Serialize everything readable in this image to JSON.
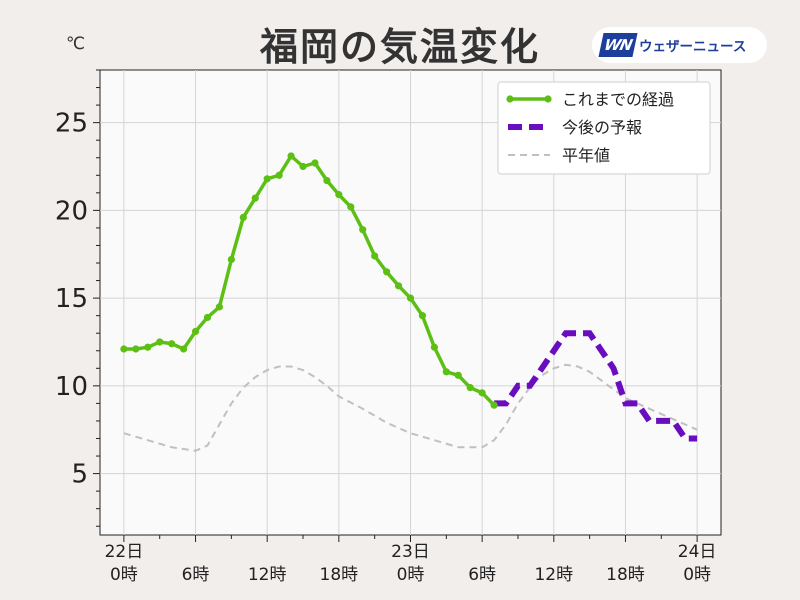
{
  "header": {
    "title": "福岡の気温変化",
    "unit": "℃",
    "brand_logo": "WN",
    "brand_name": "ウェザーニュース"
  },
  "colors": {
    "observed": "#5cbf14",
    "forecast": "#6a0dbf",
    "normal": "#c0c0c0",
    "plot_bg": "#fbfafa",
    "brand": "#1e3e9c"
  },
  "chart_data": {
    "type": "line",
    "title": "福岡の気温変化",
    "ylabel": "℃",
    "xlabel": "",
    "ylim": [
      1.5,
      28
    ],
    "xlim": [
      -2,
      50
    ],
    "grid": true,
    "legend_position": "top-right",
    "y_ticks": [
      5,
      10,
      15,
      20,
      25
    ],
    "x_ticks": [
      {
        "x": 0,
        "line1": "22日",
        "line2": "0時"
      },
      {
        "x": 6,
        "line1": "",
        "line2": "6時"
      },
      {
        "x": 12,
        "line1": "",
        "line2": "12時"
      },
      {
        "x": 18,
        "line1": "",
        "line2": "18時"
      },
      {
        "x": 24,
        "line1": "23日",
        "line2": "0時"
      },
      {
        "x": 30,
        "line1": "",
        "line2": "6時"
      },
      {
        "x": 36,
        "line1": "",
        "line2": "12時"
      },
      {
        "x": 42,
        "line1": "",
        "line2": "18時"
      },
      {
        "x": 48,
        "line1": "24日",
        "line2": "0時"
      }
    ],
    "series": [
      {
        "name": "これまでの経過",
        "style": "solid-markers",
        "x": [
          0,
          1,
          2,
          3,
          4,
          5,
          6,
          7,
          8,
          9,
          10,
          11,
          12,
          13,
          14,
          15,
          16,
          17,
          18,
          19,
          20,
          21,
          22,
          23,
          24,
          25,
          26,
          27,
          28,
          29,
          30,
          31
        ],
        "y": [
          12.1,
          12.1,
          12.2,
          12.5,
          12.4,
          12.1,
          13.1,
          13.9,
          14.5,
          17.2,
          19.6,
          20.7,
          21.8,
          22.0,
          23.1,
          22.5,
          22.7,
          21.7,
          20.9,
          20.2,
          18.9,
          17.4,
          16.5,
          15.7,
          15.0,
          14.0,
          12.2,
          10.8,
          10.6,
          9.9,
          9.6,
          8.9
        ]
      },
      {
        "name": "今後の予報",
        "style": "dashed-step",
        "x": [
          31,
          32,
          33,
          34,
          35,
          36,
          37,
          38,
          39,
          40,
          41,
          42,
          43,
          44,
          45,
          46,
          47,
          48
        ],
        "y": [
          9,
          9,
          10,
          10,
          11,
          12,
          13,
          13,
          13,
          12,
          11,
          9,
          9,
          8,
          8,
          8,
          7,
          7
        ]
      },
      {
        "name": "平年値",
        "style": "dashed-thin",
        "x": [
          0,
          2,
          4,
          6,
          7,
          8,
          9,
          10,
          11,
          12,
          13,
          14,
          15,
          16,
          17,
          18,
          20,
          22,
          24,
          26,
          28,
          30,
          31,
          32,
          33,
          34,
          35,
          36,
          37,
          38,
          39,
          40,
          41,
          42,
          44,
          46,
          48
        ],
        "y": [
          7.3,
          6.9,
          6.5,
          6.3,
          6.6,
          7.8,
          9.0,
          9.9,
          10.5,
          10.9,
          11.1,
          11.1,
          10.9,
          10.5,
          10.0,
          9.4,
          8.7,
          7.9,
          7.3,
          6.9,
          6.5,
          6.5,
          6.9,
          7.8,
          9.0,
          9.9,
          10.6,
          11.0,
          11.2,
          11.1,
          10.8,
          10.3,
          9.8,
          9.3,
          8.7,
          8.1,
          7.5
        ]
      }
    ]
  }
}
